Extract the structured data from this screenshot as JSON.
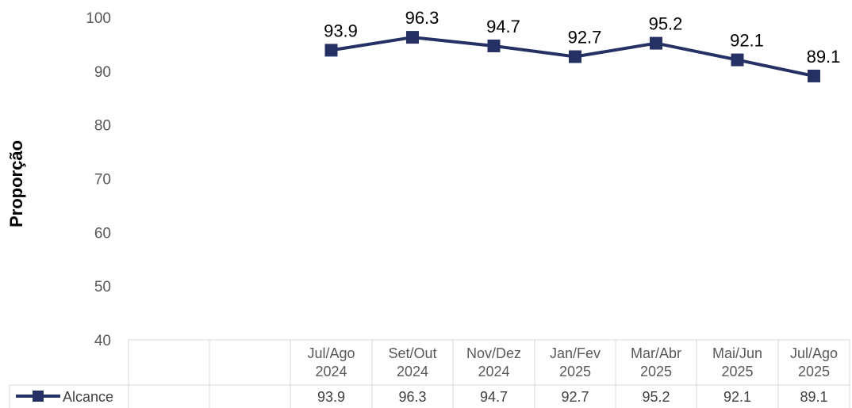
{
  "chart_data": {
    "type": "line",
    "ylabel": "Proporção",
    "xlabel": "",
    "ylim": [
      40,
      100
    ],
    "yticks": [
      40,
      50,
      60,
      70,
      80,
      90,
      100
    ],
    "grid": false,
    "legend": "data-table",
    "categories": [
      {
        "line1": "",
        "line2": ""
      },
      {
        "line1": "",
        "line2": ""
      },
      {
        "line1": "Jul/Ago",
        "line2": "2024"
      },
      {
        "line1": "Set/Out",
        "line2": "2024"
      },
      {
        "line1": "Nov/Dez",
        "line2": "2024"
      },
      {
        "line1": "Jan/Fev",
        "line2": "2025"
      },
      {
        "line1": "Mar/Abr",
        "line2": "2025"
      },
      {
        "line1": "Mai/Jun",
        "line2": "2025"
      },
      {
        "line1": "Jul/Ago",
        "line2": "2025"
      }
    ],
    "series": [
      {
        "name": "Alcance",
        "color": "#253164",
        "values": [
          null,
          null,
          93.9,
          96.3,
          94.7,
          92.7,
          95.2,
          92.1,
          89.1
        ],
        "labels": [
          "",
          "",
          "93.9",
          "96.3",
          "94.7",
          "92.7",
          "95.2",
          "92.1",
          "89.1"
        ]
      }
    ]
  }
}
